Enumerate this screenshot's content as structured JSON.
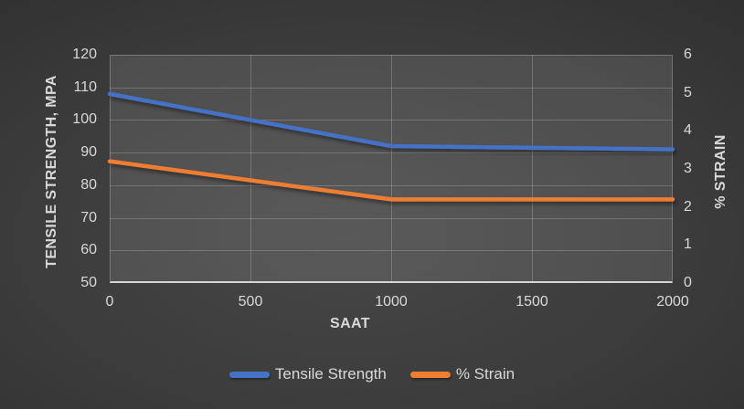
{
  "chart_data": {
    "type": "line",
    "title": "",
    "x_axis": {
      "label": "SAAT",
      "range": [
        0,
        2000
      ],
      "ticks": [
        0,
        500,
        1000,
        1500,
        2000
      ]
    },
    "y_left_axis": {
      "label": "TENSILE STRENGTH, MPA",
      "range": [
        50,
        120
      ],
      "ticks": [
        50,
        60,
        70,
        80,
        90,
        100,
        110,
        120
      ]
    },
    "y_right_axis": {
      "label": "% STRAIN",
      "range": [
        0,
        6
      ],
      "ticks": [
        0,
        1,
        2,
        3,
        4,
        5,
        6
      ]
    },
    "grid": true,
    "legend_position": "bottom",
    "series": [
      {
        "name": "Tensile Strength",
        "axis": "left",
        "color": "#4472C4",
        "points": [
          {
            "x": 0,
            "y": 108
          },
          {
            "x": 1000,
            "y": 92
          },
          {
            "x": 2000,
            "y": 91
          }
        ]
      },
      {
        "name": "% Strain",
        "axis": "right",
        "color": "#ED7D31",
        "points": [
          {
            "x": 0,
            "y": 3.2
          },
          {
            "x": 1000,
            "y": 2.2
          },
          {
            "x": 2000,
            "y": 2.2
          }
        ]
      }
    ]
  },
  "theme": {
    "text_color": "#D9D9D9",
    "tensile_blue": "#4472C4",
    "strain_orange": "#ED7D31"
  }
}
